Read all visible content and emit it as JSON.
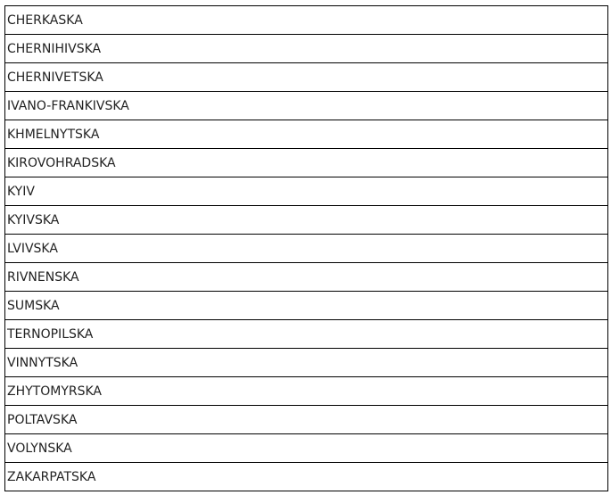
{
  "rows": [
    "CHERKASKA",
    "CHERNIHIVSKA",
    "CHERNIVETSKA",
    "IVANO-FRANKIVSKA",
    "KHMELNYTSKA",
    "KIROVOHRADSKA",
    "KYIV",
    "KYIVSKA",
    "LVIVSKA",
    "RIVNENSKA",
    "SUMSKA",
    "TERNOPILSKA",
    "VINNYTSKA",
    "ZHYTOMYRSKA",
    "POLTAVSKA",
    "VOLYNSKA",
    "ZAKARPATSKA"
  ]
}
